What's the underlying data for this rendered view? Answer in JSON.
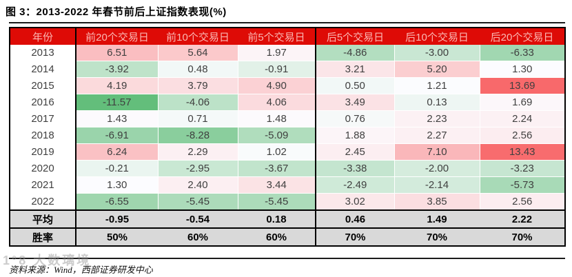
{
  "title": "图 3：2013-2022 年春节前后上证指数表现(%)",
  "source_note": "资料来源：Wind，西部证券研发中心",
  "watermark": "1°8 大数璃境",
  "colors": {
    "header_bg": "#DE0B06",
    "header_text": "#FBB8B4",
    "summary_bg": "#D9D9D9",
    "scale_max_red": "#F8696B",
    "scale_mid_white": "#FCFCFF",
    "scale_min_green": "#63BE7B"
  },
  "chart_data": {
    "type": "table",
    "title": "2013-2022 年春节前后上证指数表现(%)",
    "columns": [
      "年份",
      "前20个交易日",
      "前10个交易日",
      "前5个交易日",
      "后5个交易日",
      "后10个交易日",
      "后20个交易日"
    ],
    "rows": [
      {
        "year": "2013",
        "values": [
          6.51,
          5.64,
          1.97,
          -4.86,
          -3.0,
          -6.33
        ]
      },
      {
        "year": "2014",
        "values": [
          -3.92,
          0.48,
          -0.91,
          3.21,
          5.2,
          1.3
        ]
      },
      {
        "year": "2015",
        "values": [
          4.19,
          3.79,
          4.9,
          0.5,
          1.21,
          13.69
        ]
      },
      {
        "year": "2016",
        "values": [
          -11.57,
          -4.06,
          4.06,
          3.49,
          0.13,
          1.69
        ]
      },
      {
        "year": "2017",
        "values": [
          1.43,
          0.71,
          1.48,
          0.76,
          2.23,
          2.24
        ]
      },
      {
        "year": "2018",
        "values": [
          -6.91,
          -8.28,
          -5.09,
          1.88,
          2.27,
          2.56
        ]
      },
      {
        "year": "2019",
        "values": [
          6.24,
          2.29,
          1.02,
          2.45,
          7.1,
          13.43
        ]
      },
      {
        "year": "2020",
        "values": [
          -0.21,
          -2.95,
          -3.67,
          -3.38,
          -2.0,
          -3.23
        ]
      },
      {
        "year": "2021",
        "values": [
          1.3,
          2.4,
          3.44,
          -2.49,
          -2.14,
          -5.73
        ]
      },
      {
        "year": "2022",
        "values": [
          -6.55,
          -5.45,
          -5.45,
          3.02,
          3.85,
          2.56
        ]
      }
    ],
    "summary_rows": [
      {
        "label": "平均",
        "values": [
          "-0.95",
          "-0.54",
          "0.18",
          "0.46",
          "1.49",
          "2.22"
        ]
      },
      {
        "label": "胜率",
        "values": [
          "50%",
          "60%",
          "60%",
          "70%",
          "70%",
          "70%"
        ]
      }
    ],
    "heatmap_scale": {
      "min": -11.57,
      "mid": 1.3,
      "max": 13.69
    },
    "legend_note": "red = positive return, green = negative return (per-value 3-color scale)"
  }
}
